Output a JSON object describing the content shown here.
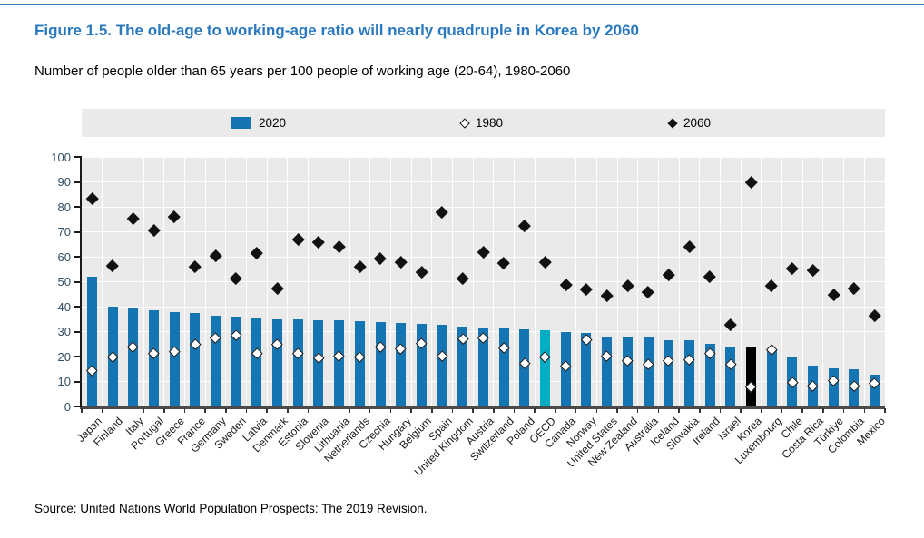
{
  "figure": {
    "title": "Figure 1.5. The old-age to working-age ratio will nearly quadruple in Korea by 2060",
    "subtitle": "Number of people older than 65 years per 100 people of working age (20-64), 1980-2060",
    "source": "Source: United Nations World Population Prospects: The 2019 Revision."
  },
  "legend": {
    "items": [
      {
        "label": "2020",
        "marker": "bar-swatch"
      },
      {
        "label": "1980",
        "marker": "open-diamond"
      },
      {
        "label": "2060",
        "marker": "filled-diamond"
      }
    ]
  },
  "colors": {
    "title_blue": "#2a78bd",
    "bar_blue": "#1575b2",
    "oecd_teal": "#00adc4",
    "korea_black": "#000000",
    "plot_bg": "#eaeaea",
    "marker_black": "#111111",
    "marker_open_fill": "#ffffff"
  },
  "chart_data": {
    "type": "bar",
    "title": "Figure 1.5. The old-age to working-age ratio will nearly quadruple in Korea by 2060",
    "subtitle": "Number of people older than 65 years per 100 people of working age (20-64), 1980-2060",
    "xlabel": "",
    "ylabel": "",
    "ylim": [
      0,
      100
    ],
    "yticks": [
      0,
      10,
      20,
      30,
      40,
      50,
      60,
      70,
      80,
      90,
      100
    ],
    "grid": true,
    "legend_position": "top",
    "categories": [
      "Japan",
      "Finland",
      "Italy",
      "Portugal",
      "Greece",
      "France",
      "Germany",
      "Sweden",
      "Latvia",
      "Denmark",
      "Estonia",
      "Slovenia",
      "Lithuania",
      "Netherlands",
      "Czechia",
      "Hungary",
      "Belgium",
      "Spain",
      "United Kingdom",
      "Austria",
      "Switzerland",
      "Poland",
      "OECD",
      "Canada",
      "Norway",
      "United States",
      "New Zealand",
      "Australia",
      "Iceland",
      "Slovakia",
      "Ireland",
      "Israel",
      "Korea",
      "Luxembourg",
      "Chile",
      "Costa Rica",
      "Türkiye",
      "Colombia",
      "Mexico"
    ],
    "series": [
      {
        "name": "2020",
        "type": "bar",
        "values": [
          52,
          40,
          39.5,
          38.5,
          38,
          37.5,
          36.5,
          36,
          35.5,
          35,
          34.8,
          34.7,
          34.4,
          34.1,
          33.9,
          33.4,
          33,
          32.7,
          32,
          31.5,
          31.3,
          30.8,
          30.4,
          29.8,
          29.5,
          28.1,
          27.9,
          27.5,
          26.7,
          26.6,
          25,
          23.9,
          23.6,
          23,
          19.7,
          16.5,
          15.3,
          14.8,
          12.9
        ]
      },
      {
        "name": "1980",
        "type": "scatter",
        "marker": "open-diamond",
        "values": [
          14.5,
          20,
          24,
          21.5,
          22,
          25,
          27.5,
          28.5,
          21.5,
          25,
          21.5,
          19.7,
          20.2,
          19.8,
          24,
          23.3,
          25.5,
          20.4,
          27.2,
          27.5,
          23.7,
          17.4,
          19.9,
          16.4,
          27,
          20.4,
          18.5,
          17.1,
          18.6,
          18.8,
          21.4,
          17.1,
          8,
          23,
          9.6,
          8.1,
          10.4,
          8.1,
          9.4
        ]
      },
      {
        "name": "2060",
        "type": "scatter",
        "marker": "filled-diamond",
        "values": [
          83.5,
          56.5,
          75.5,
          70.5,
          76,
          56,
          60.5,
          51.5,
          61.5,
          47.5,
          67,
          66,
          64,
          56,
          59.5,
          58,
          54,
          78,
          51.5,
          62,
          57.5,
          72.5,
          58,
          49,
          47,
          44.5,
          48.5,
          46,
          53,
          64,
          52,
          33,
          90,
          48.5,
          55.5,
          54.5,
          45,
          47.5,
          36.5
        ]
      }
    ],
    "bar_color_overrides": {
      "OECD": "#00adc4",
      "Korea": "#000000"
    }
  }
}
